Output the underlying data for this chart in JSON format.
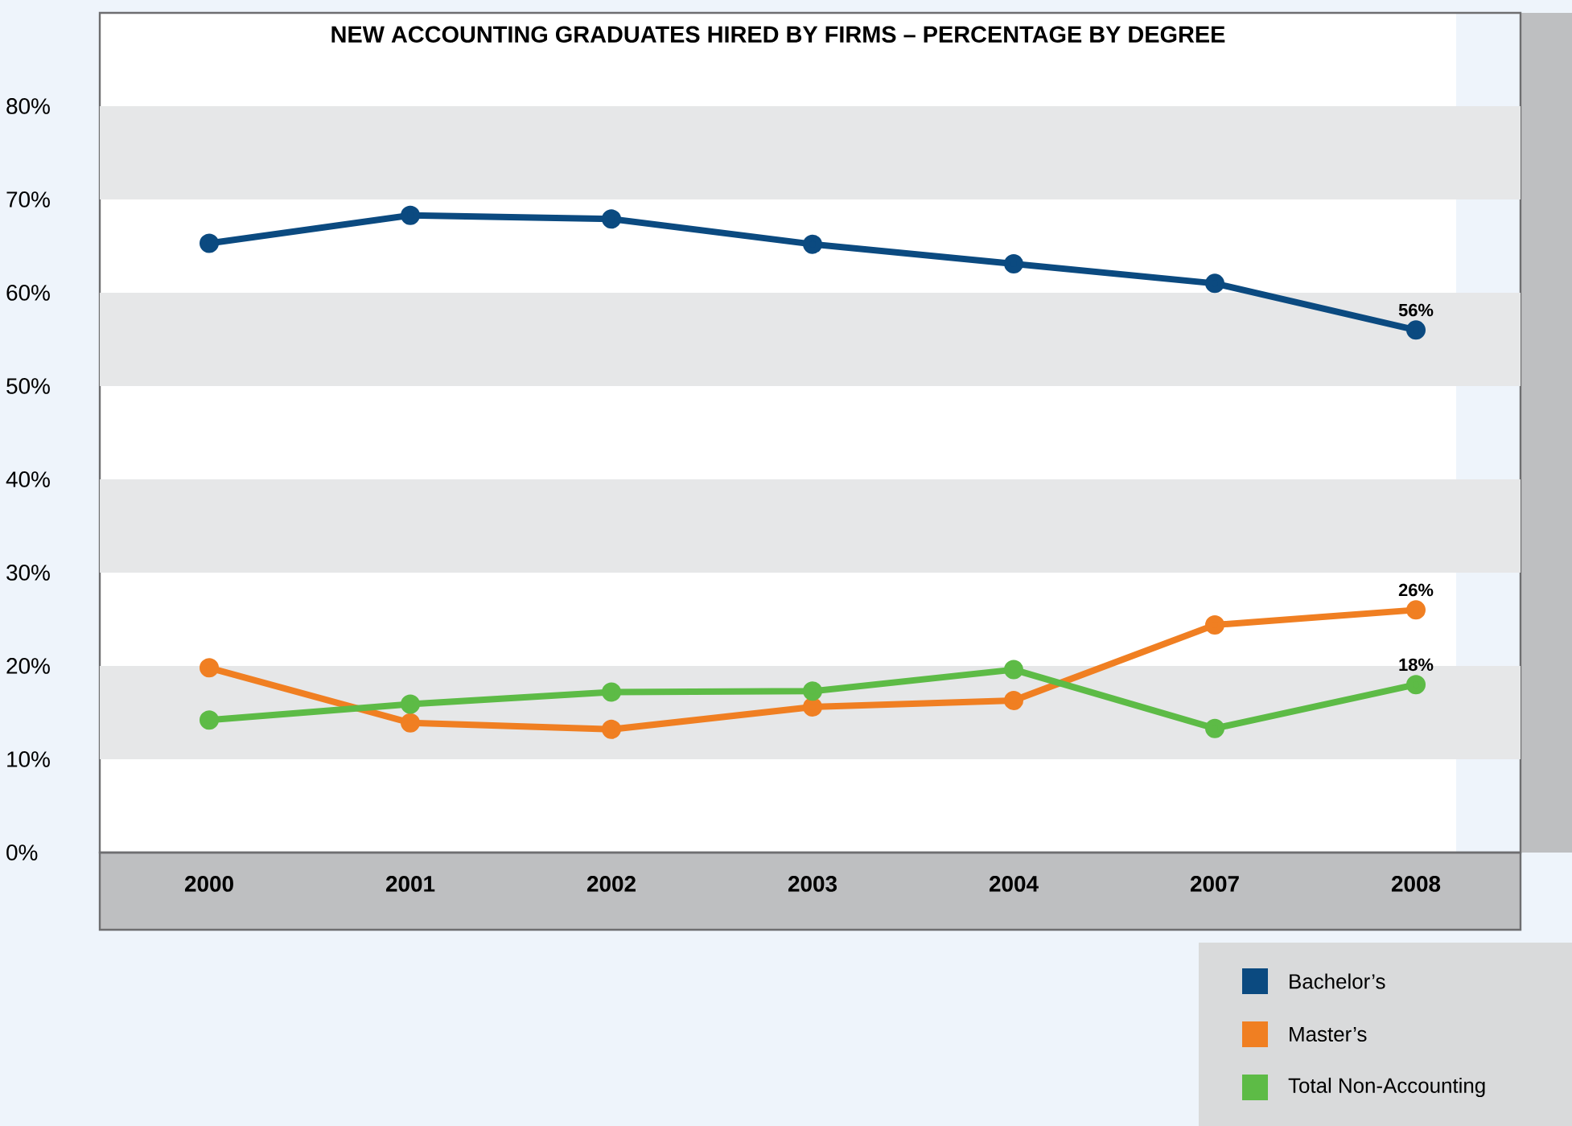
{
  "chart_data": {
    "type": "line",
    "title": "NEW ACCOUNTING GRADUATES HIRED BY FIRMS – PERCENTAGE BY DEGREE",
    "categories": [
      "2000",
      "2001",
      "2002",
      "2003",
      "2004",
      "2007",
      "2008"
    ],
    "series": [
      {
        "name": "Bachelor’s",
        "color": "#0b4a80",
        "values": [
          65.3,
          68.3,
          67.9,
          65.2,
          63.1,
          61.0,
          56
        ],
        "value_labels": [
          null,
          null,
          null,
          null,
          null,
          null,
          "56%"
        ]
      },
      {
        "name": "Master’s",
        "color": "#f07f22",
        "values": [
          19.8,
          13.9,
          13.2,
          15.6,
          16.3,
          24.4,
          26
        ],
        "value_labels": [
          null,
          null,
          null,
          null,
          null,
          null,
          "26%"
        ]
      },
      {
        "name": "Total Non-Accounting",
        "color": "#5dbb46",
        "values": [
          14.2,
          15.9,
          17.2,
          17.3,
          19.6,
          13.3,
          18
        ],
        "value_labels": [
          null,
          null,
          null,
          null,
          null,
          null,
          "18%"
        ]
      }
    ],
    "ylim": [
      0,
      90
    ],
    "yticks": [
      {
        "value": 0,
        "label": "0%"
      },
      {
        "value": 10,
        "label": "10%"
      },
      {
        "value": 20,
        "label": "20%"
      },
      {
        "value": 30,
        "label": "30%"
      },
      {
        "value": 40,
        "label": "40%"
      },
      {
        "value": 50,
        "label": "50%"
      },
      {
        "value": 60,
        "label": "60%"
      },
      {
        "value": 70,
        "label": "70%"
      },
      {
        "value": 80,
        "label": "80%"
      }
    ],
    "bands": [
      {
        "axis": "y",
        "from": 10,
        "to": 20,
        "color": "#e6e7e8"
      },
      {
        "axis": "y",
        "from": 30,
        "to": 40,
        "color": "#e6e7e8"
      },
      {
        "axis": "y",
        "from": 50,
        "to": 60,
        "color": "#e6e7e8"
      },
      {
        "axis": "y",
        "from": 70,
        "to": 80,
        "color": "#e6e7e8"
      }
    ],
    "marker": "circle",
    "line_style": "solid",
    "legend": "bottom right"
  }
}
